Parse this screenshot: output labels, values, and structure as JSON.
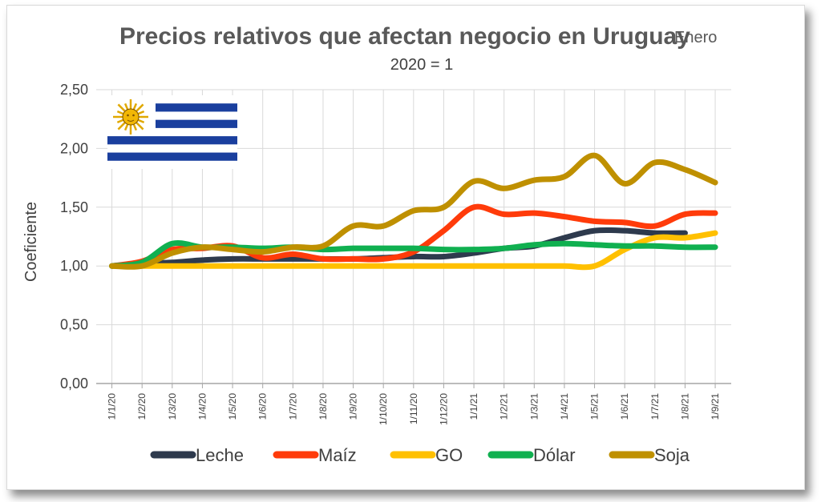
{
  "chart_data": {
    "type": "line",
    "title": "Precios relativos que afectan negocio en Uruguay",
    "title_suffix": "Enero",
    "subtitle": "2020 = 1",
    "xlabel": "",
    "ylabel": "Coeficiente",
    "ylim": [
      0,
      2.5
    ],
    "yticks": [
      "0,00",
      "0,50",
      "1,00",
      "1,50",
      "2,00",
      "2,50"
    ],
    "grid": true,
    "legend_position": "bottom",
    "categories": [
      "1/1/20",
      "1/2/20",
      "1/3/20",
      "1/4/20",
      "1/5/20",
      "1/6/20",
      "1/7/20",
      "1/8/20",
      "1/9/20",
      "1/10/20",
      "1/11/20",
      "1/12/20",
      "1/1/21",
      "1/2/21",
      "1/3/21",
      "1/4/21",
      "1/5/21",
      "1/6/21",
      "1/7/21",
      "1/8/21",
      "1/9/21"
    ],
    "series": [
      {
        "name": "Leche",
        "color": "#2e3a4d",
        "values": [
          1.0,
          1.02,
          1.03,
          1.05,
          1.06,
          1.06,
          1.06,
          1.06,
          1.06,
          1.07,
          1.08,
          1.08,
          1.11,
          1.15,
          1.17,
          1.24,
          1.3,
          1.3,
          1.28,
          1.28,
          null
        ]
      },
      {
        "name": "Maíz",
        "color": "#ff3b0a",
        "values": [
          1.0,
          1.04,
          1.14,
          1.15,
          1.17,
          1.07,
          1.1,
          1.06,
          1.06,
          1.06,
          1.12,
          1.3,
          1.5,
          1.44,
          1.45,
          1.42,
          1.38,
          1.37,
          1.34,
          1.44,
          1.45
        ]
      },
      {
        "name": "GO",
        "color": "#ffc000",
        "values": [
          1.0,
          1.0,
          1.0,
          1.0,
          1.0,
          1.0,
          1.0,
          1.0,
          1.0,
          1.0,
          1.0,
          1.0,
          1.0,
          1.0,
          1.0,
          1.0,
          1.0,
          1.14,
          1.24,
          1.24,
          1.28
        ]
      },
      {
        "name": "Dólar",
        "color": "#10b050",
        "values": [
          1.0,
          1.03,
          1.19,
          1.16,
          1.16,
          1.15,
          1.16,
          1.14,
          1.15,
          1.15,
          1.15,
          1.14,
          1.14,
          1.15,
          1.18,
          1.19,
          1.18,
          1.17,
          1.17,
          1.16,
          1.16
        ]
      },
      {
        "name": "Soja",
        "color": "#bf9000",
        "values": [
          1.0,
          1.0,
          1.11,
          1.16,
          1.14,
          1.12,
          1.16,
          1.17,
          1.34,
          1.34,
          1.47,
          1.5,
          1.72,
          1.66,
          1.73,
          1.76,
          1.94,
          1.7,
          1.88,
          1.82,
          1.71
        ]
      }
    ],
    "flag_icon": "uruguay-flag"
  }
}
